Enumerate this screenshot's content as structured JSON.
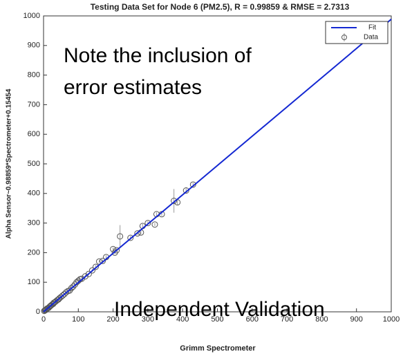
{
  "chart_data": {
    "type": "scatter",
    "title": "Testing Data Set for Node 6 (PM2.5), R = 0.99859 & RMSE = 2.7313",
    "x_label": "Grimm Spectrometer",
    "y_label": "Alpha Sensor~0.98859*Spectrometer+0.15454",
    "annotations": [
      "Note the inclusion of",
      "error estimates",
      "Independent Validation"
    ],
    "xlim": [
      0,
      1000
    ],
    "ylim": [
      0,
      1000
    ],
    "xticks": [
      0,
      100,
      200,
      300,
      400,
      500,
      600,
      700,
      800,
      900,
      1000
    ],
    "yticks": [
      0,
      100,
      200,
      300,
      400,
      500,
      600,
      700,
      800,
      900,
      1000
    ],
    "grid": false,
    "legend": "upper right",
    "series": [
      {
        "name": "Fit",
        "color": "#1428d2",
        "x": [
          0,
          1000
        ],
        "values": [
          0.15454,
          988.74
        ]
      },
      {
        "name": "Data",
        "color": "#555555",
        "x": [
          2,
          4,
          6,
          8,
          10,
          12,
          15,
          18,
          20,
          22,
          25,
          28,
          30,
          33,
          36,
          40,
          43,
          46,
          50,
          55,
          60,
          65,
          70,
          75,
          80,
          85,
          90,
          95,
          100,
          105,
          110,
          120,
          130,
          140,
          150,
          160,
          170,
          180,
          200,
          205,
          210,
          220,
          250,
          270,
          280,
          285,
          300,
          320,
          325,
          340,
          375,
          385,
          410,
          430
        ],
        "values": [
          3,
          5,
          6,
          8,
          11,
          12,
          14,
          18,
          20,
          22,
          25,
          27,
          31,
          33,
          36,
          40,
          42,
          46,
          50,
          55,
          60,
          66,
          70,
          72,
          80,
          85,
          92,
          100,
          105,
          110,
          112,
          120,
          128,
          140,
          152,
          170,
          172,
          185,
          212,
          200,
          208,
          255,
          250,
          265,
          268,
          290,
          300,
          295,
          330,
          330,
          375,
          370,
          410,
          430
        ],
        "errors": [
          1,
          1,
          1,
          1,
          2,
          1,
          2,
          2,
          2,
          2,
          2,
          2,
          3,
          2,
          3,
          3,
          2,
          3,
          3,
          3,
          4,
          3,
          4,
          3,
          8,
          4,
          5,
          10,
          5,
          4,
          5,
          5,
          4,
          5,
          6,
          5,
          5,
          6,
          6,
          5,
          6,
          38,
          6,
          5,
          6,
          7,
          6,
          5,
          6,
          6,
          40,
          8,
          8,
          6
        ]
      }
    ]
  }
}
